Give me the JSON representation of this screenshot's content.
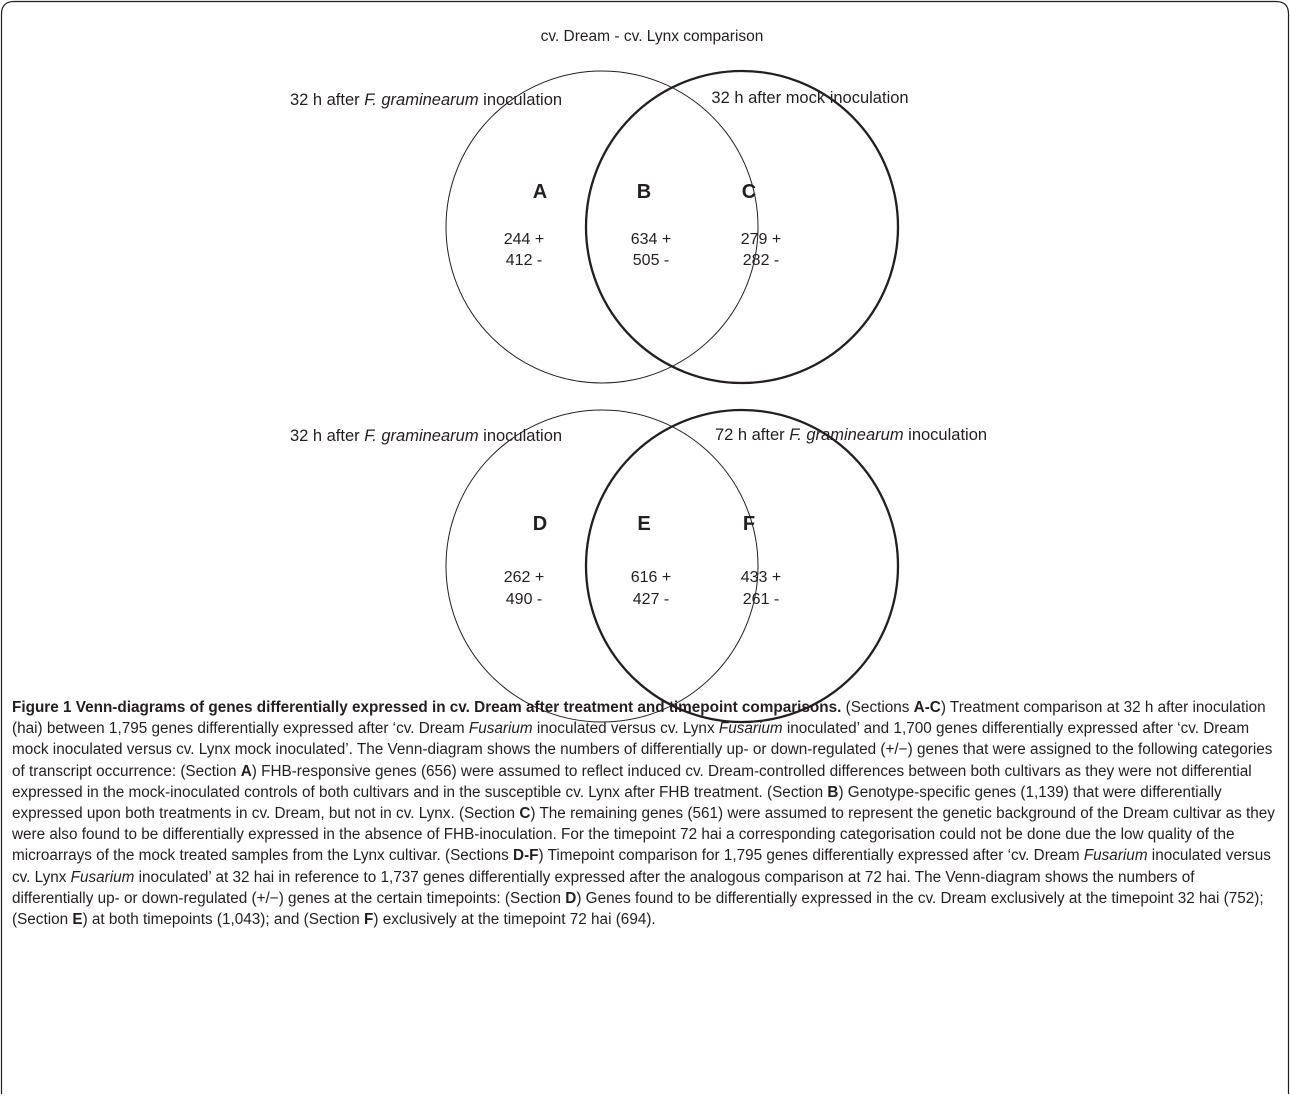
{
  "figure": {
    "top_title": "cv. Dream - cv. Lynx comparison",
    "venn_top": {
      "left_label_pre": "32 h after ",
      "left_label_ital": "F. graminearum",
      "left_label_post": " inoculation",
      "right_label": "32 h after mock inoculation",
      "sections": [
        {
          "letter": "A",
          "up": "244 +",
          "down": "412 -"
        },
        {
          "letter": "B",
          "up": "634 +",
          "down": "505 -"
        },
        {
          "letter": "C",
          "up": "279 +",
          "down": "282 -"
        }
      ]
    },
    "venn_bottom": {
      "left_label_pre": "32 h after ",
      "left_label_ital": "F. graminearum",
      "left_label_post": " inoculation",
      "right_label_pre": "72 h after ",
      "right_label_ital": "F. graminearum",
      "right_label_post": " inoculation",
      "sections": [
        {
          "letter": "D",
          "up": "262 +",
          "down": "490 -"
        },
        {
          "letter": "E",
          "up": "616 +",
          "down": "427 -"
        },
        {
          "letter": "F",
          "up": "433 +",
          "down": "261 -"
        }
      ]
    }
  },
  "caption": {
    "title": "Figure 1 Venn-diagrams of genes differentially expressed in cv. Dream after treatment and timepoint comparisons.",
    "s1": " (Sections ",
    "b1": "A-C",
    "s2": ") Treatment comparison at 32 h after inoculation (hai) between 1,795 genes differentially expressed after ‘cv. Dream ",
    "i1": "Fusarium",
    "s3": " inoculated versus cv. Lynx ",
    "i2": "Fusarium",
    "s4": " inoculated’ and 1,700 genes differentially expressed after ‘cv. Dream mock inoculated versus cv. Lynx mock inoculated’. The Venn-diagram shows the numbers of differentially up- or down-regulated (+/−) genes that were assigned to the following categories of transcript occurrence: (Section ",
    "b2": "A",
    "s5": ") FHB-responsive genes (656) were assumed to reflect induced cv. Dream-controlled differences between both cultivars as they were not differential expressed in the mock-inoculated controls of both cultivars and in the susceptible cv. Lynx after FHB treatment. (Section ",
    "b3": "B",
    "s6": ") Genotype-specific genes (1,139) that were differentially expressed upon both treatments in cv. Dream, but not in cv. Lynx. (Section ",
    "b4": "C",
    "s7": ") The remaining genes (561) were assumed to represent the genetic background of the Dream cultivar as they were also found to be differentially expressed in the absence of FHB-inoculation. For the timepoint 72 hai a corresponding categorisation could not be done due the low quality of the microarrays of the mock treated samples from the Lynx cultivar. (Sections ",
    "b5": "D-F",
    "s8": ") Timepoint comparison for 1,795 genes differentially expressed after ‘cv. Dream ",
    "i3": "Fusarium",
    "s9": " inoculated versus cv. Lynx ",
    "i4": "Fusarium",
    "s10": " inoculated’ at 32 hai in reference to 1,737 genes differentially expressed after the analogous comparison at 72 hai. The Venn-diagram shows the numbers of differentially up- or down-regulated (+/−) genes at the certain timepoints: (Section ",
    "b6": "D",
    "s11": ") Genes found to be differentially expressed in the cv. Dream exclusively at the timepoint 32 hai (752); (Section ",
    "b7": "E",
    "s12": ") at both timepoints (1,043); and (Section ",
    "b8": "F",
    "s13": ") exclusively at the timepoint 72 hai (694)."
  }
}
